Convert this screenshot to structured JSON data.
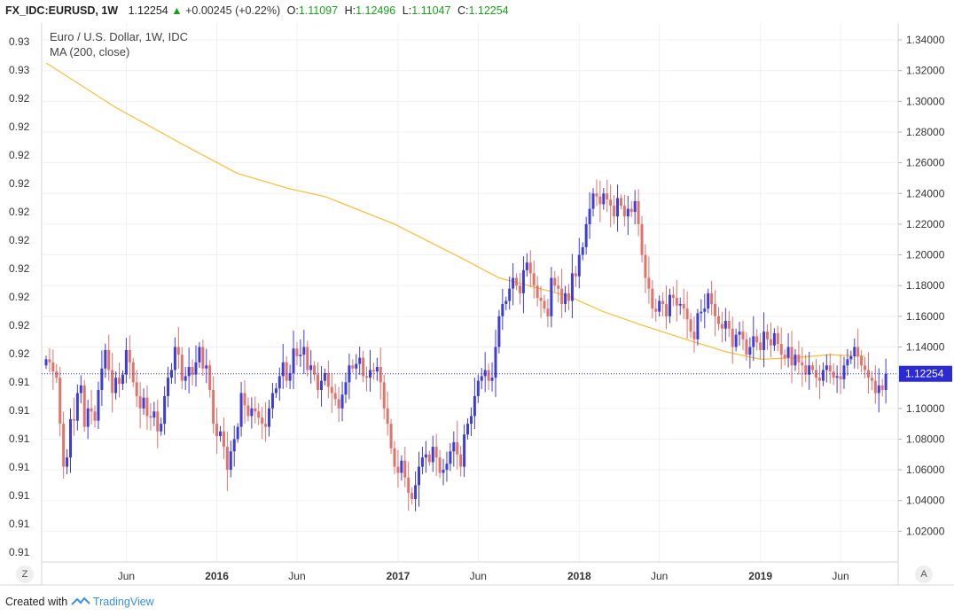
{
  "header": {
    "symbol": "FX_IDC:EURUSD, 1W",
    "last": "1.12254",
    "arrow": "▲",
    "change": "+0.00245 (+0.22%)",
    "o_label": "O:",
    "o_value": "1.11097",
    "h_label": "H:",
    "h_value": "1.12496",
    "l_label": "L:",
    "l_value": "1.11047",
    "c_label": "C:",
    "c_value": "1.12254"
  },
  "footer": {
    "created_with": "Created with",
    "brand": "TradingView"
  },
  "controls": {
    "left_button": "Z",
    "right_button": "A"
  },
  "colors": {
    "up": "#3d3ddb",
    "down": "#e0736a",
    "ma": "#f5c246",
    "price_line": "#2b2bd6",
    "price_tag": "#2b2bd6"
  },
  "chart_data": {
    "type": "candlestick",
    "title": "Euro / U.S. Dollar, 1W, IDC",
    "subtitle": "MA (200, close)",
    "current_price_label": "1.12254",
    "right_axis_labels": [
      "1.34000",
      "1.32000",
      "1.30000",
      "1.28000",
      "1.26000",
      "1.24000",
      "1.22000",
      "1.20000",
      "1.18000",
      "1.16000",
      "1.14000",
      "1.12000",
      "1.10000",
      "1.08000",
      "1.06000",
      "1.04000",
      "1.02000"
    ],
    "left_axis_labels": [
      "0.93",
      "0.93",
      "0.92",
      "0.92",
      "0.92",
      "0.92",
      "0.92",
      "0.92",
      "0.92",
      "0.92",
      "0.92",
      "0.92",
      "0.91",
      "0.91",
      "0.91",
      "0.91",
      "0.91",
      "0.91",
      "0.91"
    ],
    "x_labels": [
      "Jun",
      "2016",
      "Jun",
      "2017",
      "Jun",
      "2018",
      "Jun",
      "2019",
      "Jun"
    ],
    "x_label_weeks": [
      23,
      49,
      72,
      101,
      124,
      153,
      176,
      205,
      228
    ],
    "ylim": [
      1.0,
      1.351
    ],
    "ma_curve": [
      [
        0,
        1.325
      ],
      [
        20,
        1.296
      ],
      [
        40,
        1.271
      ],
      [
        55,
        1.253
      ],
      [
        70,
        1.243
      ],
      [
        80,
        1.238
      ],
      [
        100,
        1.22
      ],
      [
        120,
        1.197
      ],
      [
        130,
        1.185
      ],
      [
        150,
        1.173
      ],
      [
        160,
        1.163
      ],
      [
        170,
        1.155
      ],
      [
        185,
        1.144
      ],
      [
        195,
        1.137
      ],
      [
        205,
        1.132
      ],
      [
        215,
        1.133
      ],
      [
        225,
        1.135
      ],
      [
        235,
        1.134
      ]
    ],
    "weekly_closes": [
      1.132,
      1.13,
      1.124,
      1.12,
      1.09,
      1.062,
      1.068,
      1.093,
      1.092,
      1.11,
      1.115,
      1.088,
      1.1,
      1.098,
      1.092,
      1.112,
      1.126,
      1.138,
      1.125,
      1.11,
      1.12,
      1.116,
      1.122,
      1.138,
      1.13,
      1.117,
      1.108,
      1.1,
      1.107,
      1.095,
      1.094,
      1.098,
      1.085,
      1.09,
      1.108,
      1.12,
      1.125,
      1.14,
      1.135,
      1.118,
      1.121,
      1.127,
      1.122,
      1.13,
      1.14,
      1.126,
      1.128,
      1.112,
      1.09,
      1.082,
      1.085,
      1.075,
      1.06,
      1.072,
      1.08,
      1.088,
      1.11,
      1.102,
      1.095,
      1.1,
      1.098,
      1.094,
      1.09,
      1.088,
      1.1,
      1.11,
      1.113,
      1.121,
      1.13,
      1.118,
      1.123,
      1.139,
      1.134,
      1.135,
      1.14,
      1.125,
      1.128,
      1.122,
      1.112,
      1.118,
      1.123,
      1.114,
      1.11,
      1.106,
      1.1,
      1.109,
      1.117,
      1.128,
      1.126,
      1.129,
      1.133,
      1.121,
      1.12,
      1.125,
      1.124,
      1.127,
      1.117,
      1.1,
      1.09,
      1.074,
      1.062,
      1.058,
      1.066,
      1.055,
      1.045,
      1.041,
      1.05,
      1.062,
      1.068,
      1.07,
      1.065,
      1.075,
      1.068,
      1.058,
      1.06,
      1.064,
      1.072,
      1.078,
      1.07,
      1.062,
      1.083,
      1.09,
      1.095,
      1.108,
      1.118,
      1.121,
      1.125,
      1.118,
      1.12,
      1.14,
      1.16,
      1.168,
      1.17,
      1.178,
      1.185,
      1.18,
      1.175,
      1.19,
      1.195,
      1.188,
      1.18,
      1.172,
      1.17,
      1.165,
      1.16,
      1.185,
      1.18,
      1.178,
      1.168,
      1.175,
      1.17,
      1.188,
      1.186,
      1.2,
      1.205,
      1.22,
      1.23,
      1.24,
      1.238,
      1.233,
      1.24,
      1.236,
      1.232,
      1.225,
      1.237,
      1.232,
      1.225,
      1.23,
      1.228,
      1.235,
      1.22,
      1.2,
      1.185,
      1.178,
      1.165,
      1.163,
      1.17,
      1.168,
      1.16,
      1.174,
      1.172,
      1.167,
      1.168,
      1.165,
      1.158,
      1.15,
      1.145,
      1.162,
      1.163,
      1.165,
      1.175,
      1.168,
      1.16,
      1.155,
      1.152,
      1.157,
      1.152,
      1.14,
      1.148,
      1.15,
      1.145,
      1.135,
      1.14,
      1.147,
      1.143,
      1.138,
      1.15,
      1.145,
      1.141,
      1.149,
      1.142,
      1.135,
      1.133,
      1.14,
      1.128,
      1.135,
      1.13,
      1.128,
      1.122,
      1.128,
      1.125,
      1.12,
      1.118,
      1.125,
      1.128,
      1.124,
      1.12,
      1.121,
      1.119,
      1.128,
      1.132,
      1.134,
      1.14,
      1.134,
      1.128,
      1.125,
      1.12,
      1.118,
      1.11,
      1.115,
      1.112,
      1.12254
    ]
  }
}
